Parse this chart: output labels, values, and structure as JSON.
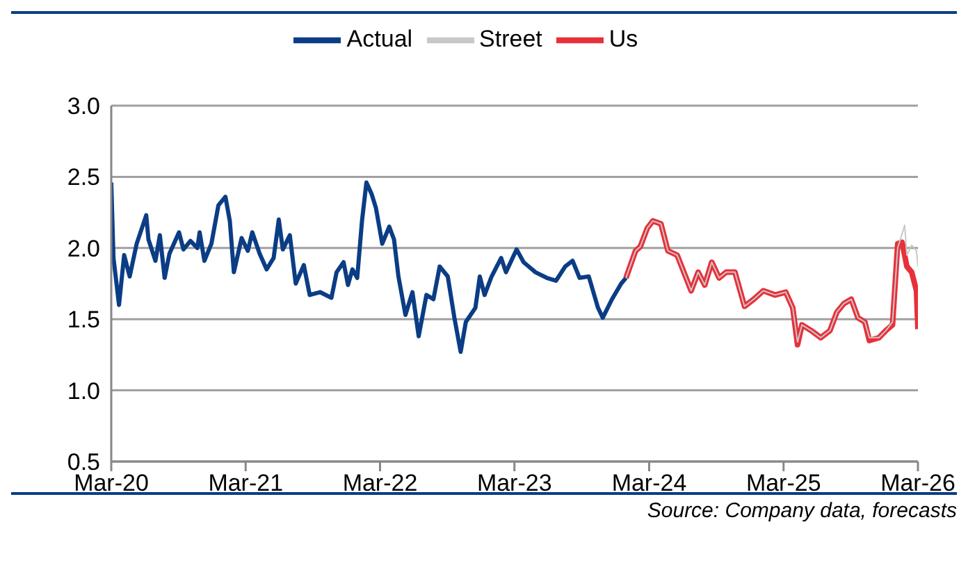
{
  "chart_data": {
    "type": "line",
    "annotations": [
      "Source: Company data, forecasts"
    ],
    "xlim": [
      "2020-03",
      "2026-03"
    ],
    "xticks": [
      {
        "value": "2020-03",
        "label": "Mar-20"
      },
      {
        "value": "2021-03",
        "label": "Mar-21"
      },
      {
        "value": "2022-03",
        "label": "Mar-22"
      },
      {
        "value": "2023-03",
        "label": "Mar-23"
      },
      {
        "value": "2024-03",
        "label": "Mar-24"
      },
      {
        "value": "2025-03",
        "label": "Mar-25"
      },
      {
        "value": "2026-03",
        "label": "Mar-26"
      }
    ],
    "ylim": [
      0.5,
      3.0
    ],
    "yticks": [
      {
        "value": 0.5,
        "label": "0.5"
      },
      {
        "value": 1.0,
        "label": "1.0"
      },
      {
        "value": 1.5,
        "label": "1.5"
      },
      {
        "value": 2.0,
        "label": "2.0"
      },
      {
        "value": 2.5,
        "label": "2.5"
      },
      {
        "value": 3.0,
        "label": "3.0"
      }
    ],
    "grid": "y",
    "legend": "top",
    "marker": "none",
    "line_style": "solid",
    "series": [
      {
        "name": "Actual",
        "color": "#0b3d85",
        "x": [
          "2020-03-01",
          "2020-03-07",
          "2020-03-13",
          "2020-03-22",
          "2020-04-05",
          "2020-04-20",
          "2020-05-09",
          "2020-06-04",
          "2020-06-10",
          "2020-06-29",
          "2020-07-11",
          "2020-07-24",
          "2020-08-06",
          "2020-09-01",
          "2020-09-13",
          "2020-10-02",
          "2020-10-21",
          "2020-10-27",
          "2020-11-09",
          "2020-11-28",
          "2020-12-17",
          "2021-01-05",
          "2021-01-17",
          "2021-01-28",
          "2021-02-18",
          "2021-03-07",
          "2021-03-19",
          "2021-04-08",
          "2021-04-27",
          "2021-05-16",
          "2021-05-30",
          "2021-06-10",
          "2021-06-29",
          "2021-07-15",
          "2021-08-06",
          "2021-08-22",
          "2021-09-19",
          "2021-10-20",
          "2021-11-03",
          "2021-11-22",
          "2021-12-04",
          "2021-12-16",
          "2021-12-29",
          "2022-01-11",
          "2022-01-23",
          "2022-02-06",
          "2022-02-18",
          "2022-03-07",
          "2022-03-26",
          "2022-04-08",
          "2022-04-20",
          "2022-05-09",
          "2022-05-28",
          "2022-06-14",
          "2022-07-05",
          "2022-07-24",
          "2022-08-10",
          "2022-09-01",
          "2022-09-19",
          "2022-10-06",
          "2022-10-20",
          "2022-11-15",
          "2022-11-27",
          "2022-12-10",
          "2022-12-29",
          "2023-01-24",
          "2023-02-06",
          "2023-03-07",
          "2023-03-26",
          "2023-04-27",
          "2023-05-28",
          "2023-06-22",
          "2023-07-17",
          "2023-08-06",
          "2023-08-25",
          "2023-09-19",
          "2023-10-14",
          "2023-10-27",
          "2023-11-21",
          "2023-12-16",
          "2023-12-29"
        ],
        "values": [
          2.46,
          1.93,
          1.8,
          1.6,
          1.95,
          1.8,
          2.03,
          2.23,
          2.06,
          1.91,
          2.09,
          1.79,
          1.96,
          2.11,
          1.99,
          2.05,
          2.0,
          2.11,
          1.91,
          2.03,
          2.3,
          2.36,
          2.19,
          1.83,
          2.07,
          1.98,
          2.11,
          1.96,
          1.85,
          1.93,
          2.2,
          1.99,
          2.09,
          1.75,
          1.88,
          1.67,
          1.69,
          1.65,
          1.83,
          1.9,
          1.74,
          1.85,
          1.79,
          2.19,
          2.46,
          2.38,
          2.28,
          2.03,
          2.15,
          2.06,
          1.8,
          1.53,
          1.69,
          1.38,
          1.67,
          1.64,
          1.87,
          1.8,
          1.51,
          1.27,
          1.48,
          1.58,
          1.8,
          1.67,
          1.8,
          1.93,
          1.83,
          1.99,
          1.9,
          1.83,
          1.79,
          1.77,
          1.87,
          1.91,
          1.79,
          1.8,
          1.58,
          1.51,
          1.64,
          1.75,
          1.79
        ]
      },
      {
        "name": "Us",
        "color": "#e8303a",
        "x": [
          "2023-12-29",
          "2024-01-24",
          "2024-02-06",
          "2024-02-25",
          "2024-03-11",
          "2024-04-02",
          "2024-04-21",
          "2024-05-16",
          "2024-06-23",
          "2024-07-12",
          "2024-07-30",
          "2024-08-18",
          "2024-09-07",
          "2024-09-26",
          "2024-10-20",
          "2024-11-15",
          "2024-12-10",
          "2025-01-05",
          "2025-02-06",
          "2025-03-07",
          "2025-03-26",
          "2025-04-08",
          "2025-04-20",
          "2025-05-15",
          "2025-06-10",
          "2025-07-05",
          "2025-07-24",
          "2025-08-12",
          "2025-09-01",
          "2025-09-19",
          "2025-10-08",
          "2025-10-20",
          "2025-11-15",
          "2025-12-04",
          "2025-12-22",
          "2026-01-05",
          "2026-01-17",
          "2026-01-30",
          "2026-02-12",
          "2026-02-25",
          "2026-03-01"
        ],
        "values": [
          1.79,
          1.98,
          2.01,
          2.14,
          2.19,
          2.17,
          1.98,
          1.95,
          1.7,
          1.83,
          1.74,
          1.9,
          1.79,
          1.83,
          1.83,
          1.59,
          1.64,
          1.7,
          1.67,
          1.69,
          1.58,
          1.32,
          1.46,
          1.42,
          1.37,
          1.42,
          1.55,
          1.61,
          1.64,
          1.51,
          1.48,
          1.35,
          1.37,
          1.42,
          1.46,
          2.03,
          2.04,
          1.87,
          1.83,
          1.7,
          1.43
        ]
      },
      {
        "name": "Street",
        "color": "#c8c8c8",
        "x": [
          "2023-12-29",
          "2024-01-24",
          "2024-02-06",
          "2024-02-25",
          "2024-03-11",
          "2024-04-02",
          "2024-04-21",
          "2024-05-16",
          "2024-06-23",
          "2024-07-12",
          "2024-07-30",
          "2024-08-18",
          "2024-09-07",
          "2024-09-26",
          "2024-10-20",
          "2024-11-15",
          "2024-12-10",
          "2025-01-05",
          "2025-02-06",
          "2025-03-07",
          "2025-03-26",
          "2025-04-08",
          "2025-04-20",
          "2025-05-15",
          "2025-06-10",
          "2025-07-05",
          "2025-07-24",
          "2025-08-12",
          "2025-09-01",
          "2025-09-19",
          "2025-10-08",
          "2025-10-20",
          "2025-11-15",
          "2025-12-04",
          "2025-12-22",
          "2026-01-05",
          "2026-01-17",
          "2026-01-24",
          "2026-01-30",
          "2026-02-12",
          "2026-02-25",
          "2026-03-01"
        ],
        "values": [
          1.79,
          1.98,
          2.01,
          2.14,
          2.19,
          2.17,
          1.98,
          1.95,
          1.7,
          1.83,
          1.74,
          1.9,
          1.79,
          1.83,
          1.83,
          1.59,
          1.64,
          1.7,
          1.67,
          1.69,
          1.58,
          1.34,
          1.46,
          1.42,
          1.37,
          1.42,
          1.55,
          1.61,
          1.64,
          1.51,
          1.48,
          1.37,
          1.37,
          1.42,
          1.48,
          2.0,
          2.1,
          2.16,
          1.95,
          2.02,
          1.98,
          1.87
        ]
      }
    ]
  }
}
